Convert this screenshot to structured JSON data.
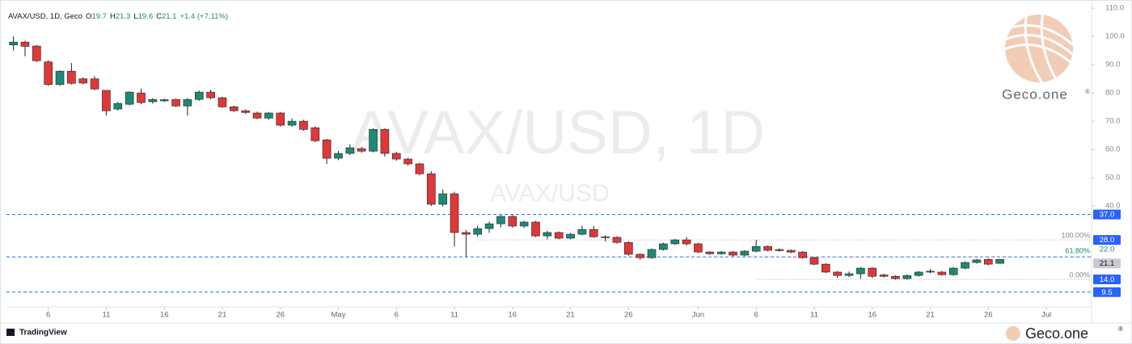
{
  "chart_data": {
    "type": "candlestick",
    "header": {
      "symbol": "AVAX/USD, 1D, Geco",
      "o_label": "O",
      "open": 19.7,
      "h_label": "H",
      "high": 21.3,
      "l_label": "L",
      "low": 19.6,
      "c_label": "C",
      "close": 21.1,
      "change": "+1.4 (+7.11%)"
    },
    "watermark": "AVAX/USD, 1D",
    "watermark_sub": "AVAX/USD",
    "brand": "Geco.one",
    "brand_mark": "®",
    "platform": "TradingView",
    "up_color": "#1e8a73",
    "down_color": "#e03838",
    "open": [
      97,
      98,
      96.6,
      91,
      83,
      87.7,
      85,
      85,
      80.9,
      74.3,
      76,
      80,
      76.9,
      77.2,
      77.7,
      75.4,
      77.7,
      80.3,
      78.3,
      75.1,
      73.7,
      72.9,
      71.1,
      72.9,
      68.6,
      70,
      67.7,
      63.4,
      56.9,
      58.6,
      60.3,
      59.4,
      67.1,
      58.6,
      56.6,
      54.9,
      51.4,
      40.6,
      44.3,
      30.6,
      30,
      32,
      33.7,
      36.3,
      32.9,
      34.3,
      29.4,
      30.6,
      28.6,
      30,
      31.7,
      29.1,
      28.9,
      27.1,
      22.9,
      21.7,
      24.6,
      26.6,
      28,
      26.6,
      23.7,
      23.1,
      23.7,
      22.6,
      24,
      25.7,
      24.6,
      24.3,
      23.7,
      21.7,
      19.4,
      16.6,
      15.4,
      16,
      18,
      15.6,
      15.1,
      14.3,
      15.4,
      16.6,
      16.6,
      15.7,
      18,
      20,
      21.1,
      19.7
    ],
    "high": [
      100,
      98.5,
      97,
      91.5,
      88,
      90.6,
      85.5,
      86,
      81,
      76.8,
      80.6,
      81.5,
      78.2,
      78,
      78,
      78.2,
      80.8,
      81.2,
      78.7,
      75.5,
      74.2,
      73.4,
      73.2,
      73.2,
      71,
      70.5,
      68.2,
      63.8,
      59.5,
      61.8,
      61,
      67.5,
      67.5,
      59.2,
      57,
      55.3,
      52.3,
      45.8,
      45,
      31.5,
      33,
      34.5,
      36.8,
      36.8,
      34.8,
      34.7,
      31.2,
      31,
      30.5,
      33,
      33,
      29.6,
      29.3,
      27.5,
      23.2,
      25,
      27,
      28.4,
      29,
      27,
      24,
      24.1,
      24,
      24.4,
      28,
      26,
      25,
      24.6,
      24,
      22,
      19.8,
      17,
      16.8,
      18.4,
      18.4,
      16,
      15.5,
      15.8,
      17,
      17.7,
      17,
      18.4,
      20.4,
      21.3,
      21.5,
      21.3
    ],
    "low": [
      95,
      93,
      91,
      82.5,
      82.5,
      83,
      83,
      81,
      72,
      73.8,
      75.6,
      76,
      76.2,
      76.8,
      75,
      72,
      77.2,
      77.8,
      74.7,
      73.3,
      72.6,
      70.7,
      70.5,
      68.1,
      68,
      66.6,
      62.6,
      54.9,
      56.2,
      58,
      58.8,
      59,
      57.5,
      56,
      54.3,
      50.8,
      40,
      39.8,
      25.7,
      22,
      29.2,
      30.5,
      32.5,
      32.3,
      32.2,
      29,
      28.2,
      28.2,
      28.2,
      29.6,
      28.7,
      27.5,
      26.7,
      22.4,
      21,
      21.3,
      24.2,
      26.2,
      26,
      23.3,
      22.7,
      22.7,
      22.2,
      22.2,
      23.6,
      23.9,
      23.8,
      23.3,
      21.3,
      19,
      16.2,
      14.6,
      14.8,
      14.2,
      14.6,
      14.7,
      13.9,
      13.9,
      15,
      16.2,
      15.3,
      15.3,
      17.6,
      19.6,
      19,
      19.6
    ],
    "close": [
      98,
      96.5,
      91.4,
      83,
      87.7,
      83.4,
      83.5,
      81.4,
      73.7,
      76.3,
      80.3,
      76.6,
      77.7,
      77.6,
      75.4,
      77.7,
      80.3,
      78.3,
      75.1,
      73.7,
      73.1,
      71.1,
      72.9,
      68.6,
      70,
      67.1,
      63.1,
      56.9,
      58.6,
      60.6,
      59.4,
      67.1,
      58.6,
      56.6,
      54.9,
      51.4,
      40.6,
      44.3,
      30.6,
      30,
      32,
      33.7,
      36.3,
      32.9,
      34.3,
      29.4,
      30.6,
      28.6,
      30,
      31.7,
      29.1,
      28.9,
      27.1,
      22.9,
      21.7,
      24.6,
      26.6,
      28,
      26.6,
      23.7,
      23.1,
      23.7,
      22.6,
      24,
      25.7,
      24.3,
      24.2,
      23.7,
      21.7,
      19.4,
      16.6,
      15.4,
      16,
      18,
      15.1,
      15.1,
      14.3,
      15.4,
      16.6,
      16.9,
      15.7,
      18,
      20,
      20.9,
      19.4,
      21.1
    ],
    "xlim": [
      -0.6,
      92.9
    ],
    "xticks": [
      {
        "value": 3,
        "label": "6"
      },
      {
        "value": 8,
        "label": "11"
      },
      {
        "value": 13,
        "label": "16"
      },
      {
        "value": 18,
        "label": "21"
      },
      {
        "value": 23,
        "label": "26"
      },
      {
        "value": 28,
        "label": "May"
      },
      {
        "value": 33,
        "label": "6"
      },
      {
        "value": 38,
        "label": "11"
      },
      {
        "value": 43,
        "label": "16"
      },
      {
        "value": 48,
        "label": "21"
      },
      {
        "value": 53,
        "label": "26"
      },
      {
        "value": 59,
        "label": "Jun"
      },
      {
        "value": 64,
        "label": "6"
      },
      {
        "value": 69,
        "label": "11"
      },
      {
        "value": 74,
        "label": "16"
      },
      {
        "value": 79,
        "label": "21"
      },
      {
        "value": 84,
        "label": "26"
      },
      {
        "value": 89,
        "label": "Jul"
      }
    ],
    "ylim": [
      4.3,
      112.9
    ],
    "yticks": [
      {
        "value": 110,
        "label": "110.0"
      },
      {
        "value": 100,
        "label": "100.0"
      },
      {
        "value": 90,
        "label": "90.0"
      },
      {
        "value": 80,
        "label": "80.0"
      },
      {
        "value": 70,
        "label": "70.0"
      },
      {
        "value": 60,
        "label": "60.0"
      },
      {
        "value": 50,
        "label": "50.0"
      },
      {
        "value": 40,
        "label": "40.0"
      }
    ],
    "price_lines": [
      {
        "value": 37,
        "label": "37.0"
      },
      {
        "value": 22
      },
      {
        "value": 9.5,
        "label": "9.5"
      }
    ],
    "fib_levels": [
      {
        "value": 28,
        "label": "100.00%",
        "axis_label": "28.0"
      },
      {
        "value": 22,
        "label": "61.80%",
        "axis_label": "22.0"
      },
      {
        "value": 14,
        "label": "0.00%",
        "axis_label": "14.0"
      }
    ],
    "last_price": {
      "value": 21.1,
      "label": "21.1"
    }
  }
}
